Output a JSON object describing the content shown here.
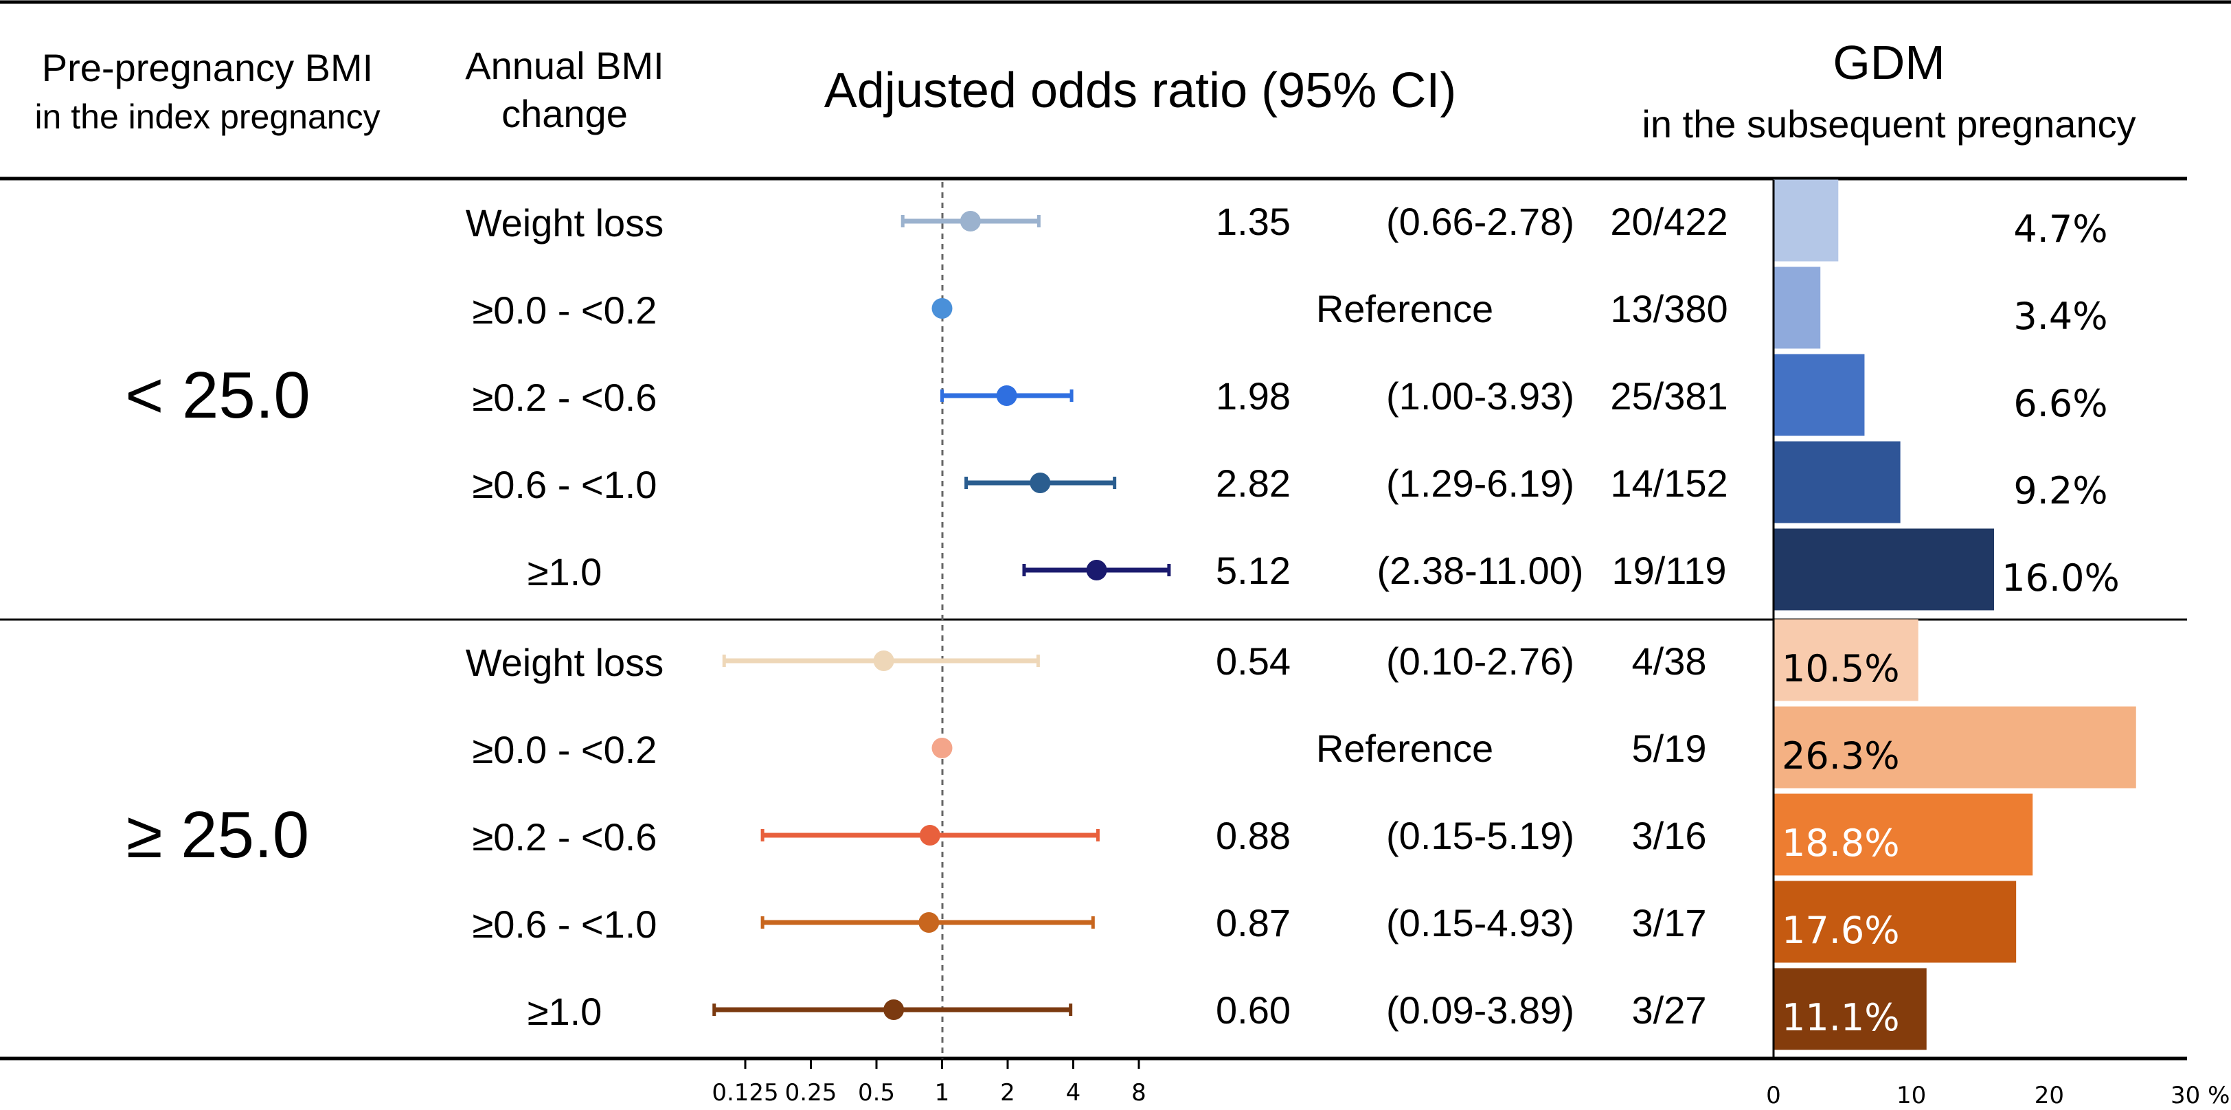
{
  "headers": {
    "bmi_title": "Pre-pregnancy BMI",
    "bmi_subtitle": "in the index pregnancy",
    "change_title": "Annual BMI",
    "change_subtitle": "change",
    "or_title": "Adjusted odds ratio (95% CI)",
    "gdm_title": "GDM",
    "gdm_subtitle": "in the subsequent pregnancy"
  },
  "chart_data": {
    "type": "forest plot with horizontal bar chart",
    "forest": {
      "xscale": "log2",
      "xlim": [
        0.125,
        8
      ],
      "reference_line": 1,
      "ticks": [
        0.125,
        0.25,
        0.5,
        1,
        2,
        4,
        8
      ],
      "tick_labels": [
        "0.125",
        "0.25",
        "0.5",
        "1",
        "2",
        "4",
        "8"
      ]
    },
    "bars": {
      "xlim": [
        0,
        30
      ],
      "ticks": [
        0,
        10,
        20,
        30
      ],
      "tick_labels": [
        "0",
        "10",
        "20",
        "30 %"
      ]
    },
    "groups": [
      {
        "label": "< 25.0",
        "rows": [
          {
            "change": "Weight loss",
            "or": 1.35,
            "lo": 0.66,
            "hi": 2.78,
            "or_text": "1.35",
            "ci_text": "(0.66-2.78)",
            "cases": "20/422",
            "pct": 4.7,
            "pct_text": "4.7%",
            "point_color": "#9bb2ce",
            "bar_color": "#b4c7e7"
          },
          {
            "change": "≥0.0 - <0.2",
            "or": 1.0,
            "lo": null,
            "hi": null,
            "or_text": "",
            "ci_text": "Reference",
            "cases": "13/380",
            "pct": 3.4,
            "pct_text": "3.4%",
            "point_color": "#4a90d9",
            "bar_color": "#8faadc"
          },
          {
            "change": "≥0.2 - <0.6",
            "or": 1.98,
            "lo": 1.0,
            "hi": 3.93,
            "or_text": "1.98",
            "ci_text": "(1.00-3.93)",
            "cases": "25/381",
            "pct": 6.6,
            "pct_text": "6.6%",
            "point_color": "#2f6fe0",
            "bar_color": "#4472c4"
          },
          {
            "change": "≥0.6 - <1.0",
            "or": 2.82,
            "lo": 1.29,
            "hi": 6.19,
            "or_text": "2.82",
            "ci_text": "(1.29-6.19)",
            "cases": "14/152",
            "pct": 9.2,
            "pct_text": "9.2%",
            "point_color": "#2a5d8f",
            "bar_color": "#2f5597"
          },
          {
            "change": "≥1.0",
            "or": 5.12,
            "lo": 2.38,
            "hi": 11.0,
            "or_text": "5.12",
            "ci_text": "(2.38-11.00)",
            "cases": "19/119",
            "pct": 16.0,
            "pct_text": "16.0%",
            "point_color": "#1a1a6e",
            "bar_color": "#203864"
          }
        ]
      },
      {
        "label": "≥ 25.0",
        "rows": [
          {
            "change": "Weight loss",
            "or": 0.54,
            "lo": 0.1,
            "hi": 2.76,
            "or_text": "0.54",
            "ci_text": "(0.10-2.76)",
            "cases": "4/38",
            "pct": 10.5,
            "pct_text": "10.5%",
            "point_color": "#eed7b8",
            "bar_color": "#f8cbad"
          },
          {
            "change": "≥0.0 - <0.2",
            "or": 1.0,
            "lo": null,
            "hi": null,
            "or_text": "",
            "ci_text": "Reference",
            "cases": "5/19",
            "pct": 26.3,
            "pct_text": "26.3%",
            "point_color": "#f4a58a",
            "bar_color": "#f4b183"
          },
          {
            "change": "≥0.2 - <0.6",
            "or": 0.88,
            "lo": 0.15,
            "hi": 5.19,
            "or_text": "0.88",
            "ci_text": "(0.15-5.19)",
            "cases": "3/16",
            "pct": 18.8,
            "pct_text": "18.8%",
            "point_color": "#e8603c",
            "bar_color": "#ed7d31"
          },
          {
            "change": "≥0.6 - <1.0",
            "or": 0.87,
            "lo": 0.15,
            "hi": 4.93,
            "or_text": "0.87",
            "ci_text": "(0.15-4.93)",
            "cases": "3/17",
            "pct": 17.6,
            "pct_text": "17.6%",
            "point_color": "#c8661e",
            "bar_color": "#c55a11"
          },
          {
            "change": "≥1.0",
            "or": 0.6,
            "lo": 0.09,
            "hi": 3.89,
            "or_text": "0.60",
            "ci_text": "(0.09-3.89)",
            "cases": "3/27",
            "pct": 11.1,
            "pct_text": "11.1%",
            "point_color": "#7b3a10",
            "bar_color": "#843c0c"
          }
        ]
      }
    ]
  }
}
